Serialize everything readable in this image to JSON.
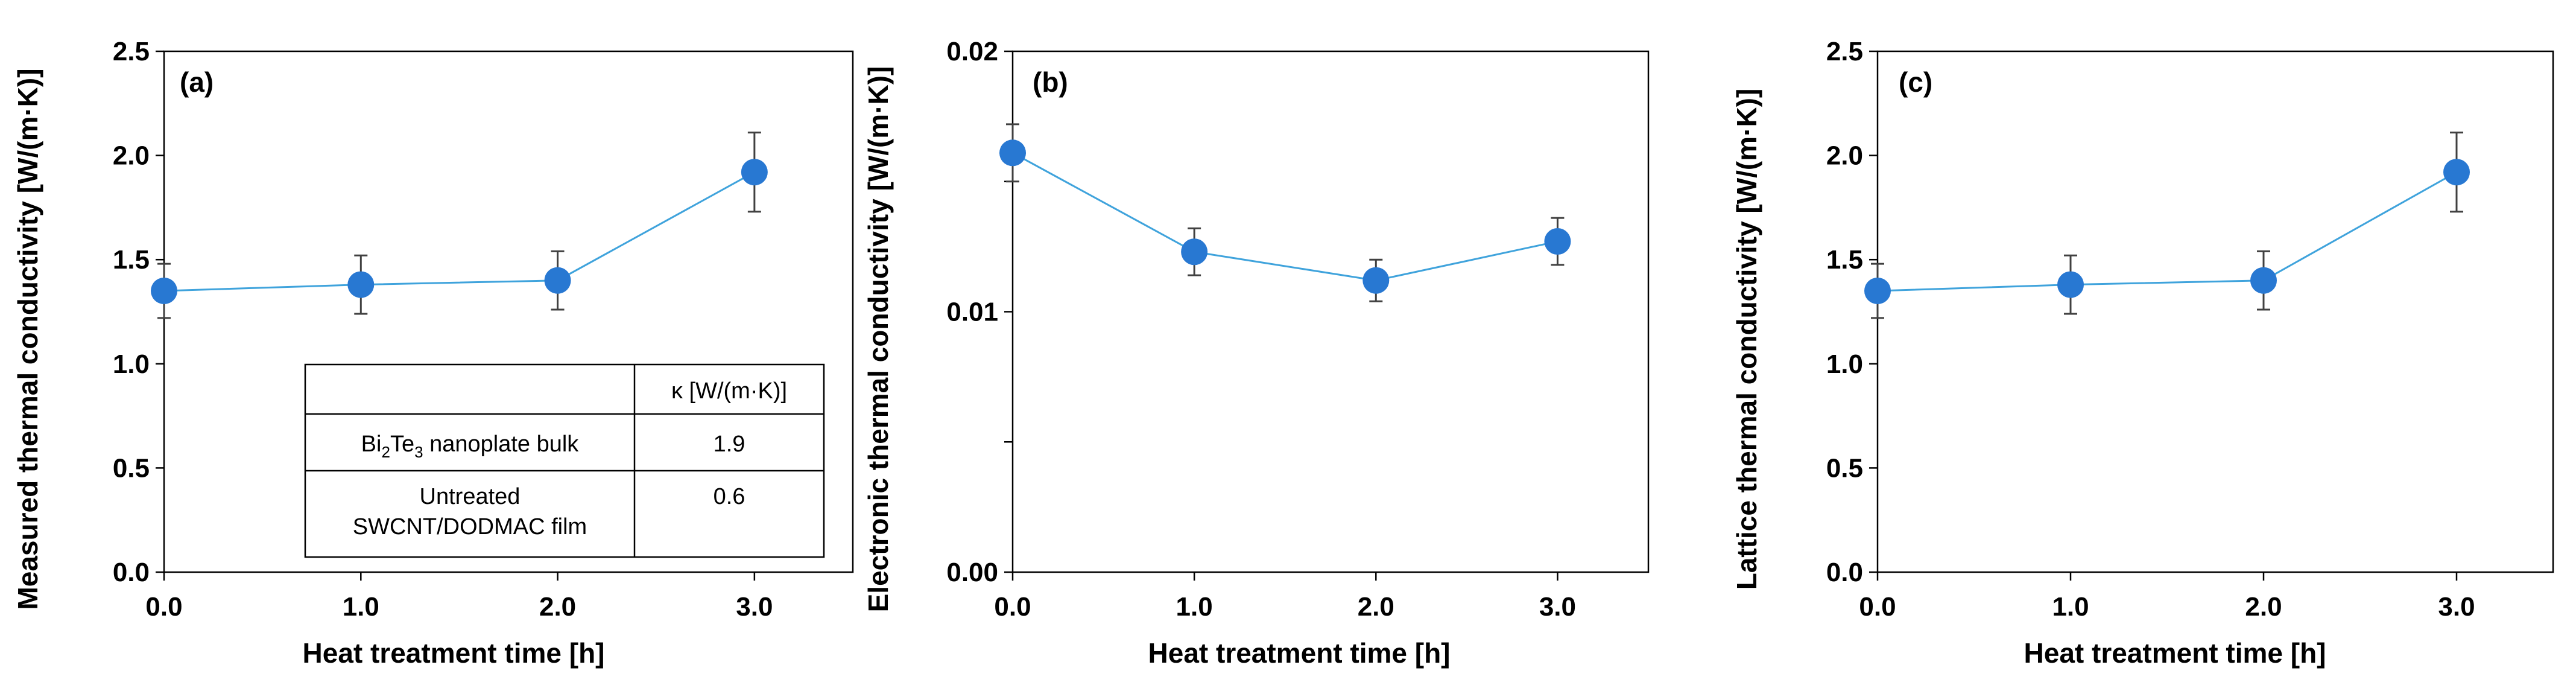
{
  "chart_data": [
    {
      "type": "line",
      "panel_label": "(a)",
      "xlabel": "Heat treatment time [h]",
      "ylabel": "Measured thermal conductivity [W/(m·K)]",
      "xlim": [
        0,
        3.5
      ],
      "ylim": [
        0,
        2.5
      ],
      "x_ticks": [
        "0.0",
        "1.0",
        "2.0",
        "3.0"
      ],
      "y_ticks": [
        "0.0",
        "0.5",
        "1.0",
        "1.5",
        "2.0",
        "2.5"
      ],
      "series": [
        {
          "name": "Measured thermal conductivity",
          "x": [
            0,
            1,
            2,
            3
          ],
          "values": [
            1.35,
            1.38,
            1.4,
            1.92
          ],
          "errors": [
            0.13,
            0.14,
            0.14,
            0.19
          ]
        }
      ],
      "inset_table": {
        "header": "κ [W/(m·K)]",
        "rows": [
          {
            "name": "Bi2Te3 nanoplate bulk",
            "name_base": "Bi",
            "name_sub1": "2",
            "name_mid": "Te",
            "name_sub2": "3",
            "name_tail": " nanoplate  bulk",
            "value": "1.9"
          },
          {
            "name_line1": "Untreated",
            "name_line2": "SWCNT/DODMAC film",
            "value": "0.6"
          }
        ]
      }
    },
    {
      "type": "line",
      "panel_label": "(b)",
      "xlabel": "Heat treatment time [h]",
      "ylabel": "Electronic thermal conductivity [W/(m·K)]",
      "xlim": [
        0,
        3.5
      ],
      "ylim": [
        0,
        0.02
      ],
      "x_ticks": [
        "0.0",
        "1.0",
        "2.0",
        "3.0"
      ],
      "y_ticks": [
        "0.00",
        "0.01",
        "0.02"
      ],
      "series": [
        {
          "name": "Electronic thermal conductivity",
          "x": [
            0,
            1,
            2,
            3
          ],
          "values": [
            0.0161,
            0.0123,
            0.0112,
            0.0127
          ],
          "errors": [
            0.0011,
            0.0009,
            0.0008,
            0.0009
          ]
        }
      ]
    },
    {
      "type": "line",
      "panel_label": "(c)",
      "xlabel": "Heat treatment time [h]",
      "ylabel": "Lattice thermal conductivity [W/(m·K)]",
      "xlim": [
        0,
        3.5
      ],
      "ylim": [
        0,
        2.5
      ],
      "x_ticks": [
        "0.0",
        "1.0",
        "2.0",
        "3.0"
      ],
      "y_ticks": [
        "0.0",
        "0.5",
        "1.0",
        "1.5",
        "2.0",
        "2.5"
      ],
      "series": [
        {
          "name": "Lattice thermal conductivity",
          "x": [
            0,
            1,
            2,
            3
          ],
          "values": [
            1.35,
            1.38,
            1.4,
            1.92
          ],
          "errors": [
            0.13,
            0.14,
            0.14,
            0.19
          ]
        }
      ]
    }
  ],
  "colors": {
    "marker": "#2878d2",
    "line": "#3fa3dc",
    "axis": "#000000",
    "errorbar": "#404040"
  }
}
